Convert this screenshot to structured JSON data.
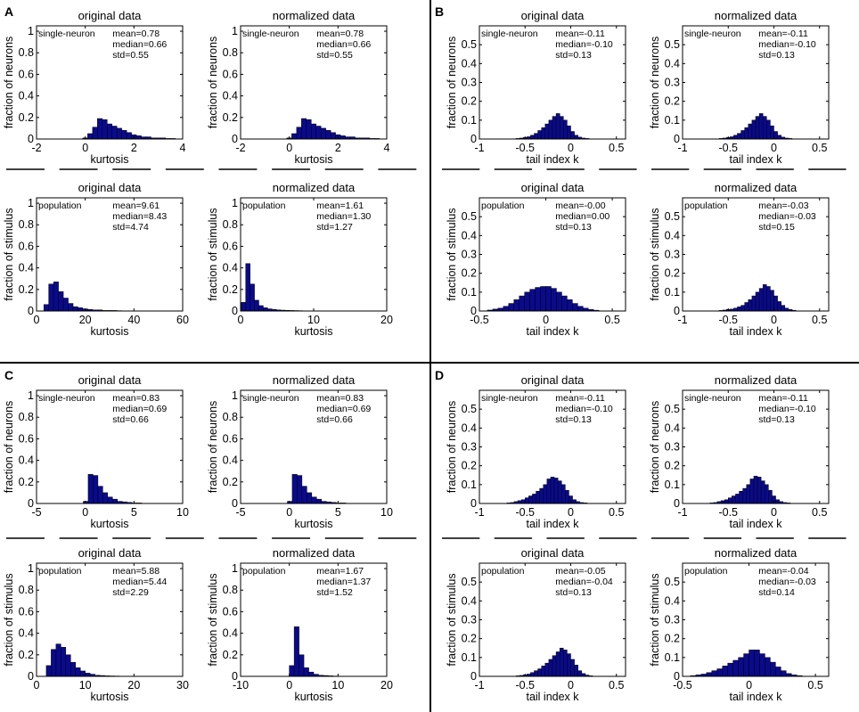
{
  "panel_labels": [
    "A",
    "B",
    "C",
    "D"
  ],
  "chart_data": [
    {
      "panel": "A",
      "type": "bar",
      "title": "original data",
      "xlabel": "kurtosis",
      "ylabel": "fraction of neurons",
      "tag": "single-neuron",
      "stats": [
        "mean=0.78",
        "median=0.66",
        "std=0.55"
      ],
      "xlim": [
        -2,
        4
      ],
      "ylim": [
        0,
        1.05
      ],
      "xticks": [
        -2,
        0,
        2,
        4
      ],
      "xtick_labels": [
        "-2",
        "0",
        "2",
        "4"
      ],
      "yticks": [
        0,
        0.2,
        0.4,
        0.6,
        0.8,
        1
      ],
      "ytick_labels": [
        "0",
        "0.2",
        "0.4",
        "0.6",
        "0.8",
        "1"
      ],
      "bin_start": -0.1,
      "bin_width": 0.2,
      "values": [
        0.01,
        0.05,
        0.11,
        0.19,
        0.18,
        0.14,
        0.12,
        0.1,
        0.08,
        0.06,
        0.04,
        0.03,
        0.02,
        0.02,
        0.01,
        0.01,
        0.01,
        0.005,
        0.005
      ]
    },
    {
      "panel": "A",
      "type": "bar",
      "title": "normalized data",
      "xlabel": "kurtosis",
      "ylabel": "fraction of neurons",
      "tag": "single-neuron",
      "stats": [
        "mean=0.78",
        "median=0.66",
        "std=0.55"
      ],
      "xlim": [
        -2,
        4
      ],
      "ylim": [
        0,
        1.05
      ],
      "xticks": [
        -2,
        0,
        2,
        4
      ],
      "xtick_labels": [
        "-2",
        "0",
        "2",
        "4"
      ],
      "yticks": [
        0,
        0.2,
        0.4,
        0.6,
        0.8,
        1
      ],
      "ytick_labels": [
        "0",
        "0.2",
        "0.4",
        "0.6",
        "0.8",
        "1"
      ],
      "bin_start": -0.1,
      "bin_width": 0.2,
      "values": [
        0.01,
        0.05,
        0.11,
        0.19,
        0.18,
        0.14,
        0.12,
        0.1,
        0.08,
        0.06,
        0.04,
        0.03,
        0.02,
        0.02,
        0.01,
        0.01,
        0.01,
        0.005,
        0.005
      ]
    },
    {
      "panel": "A",
      "type": "bar",
      "title": "original data",
      "xlabel": "kurtosis",
      "ylabel": "fraction of stimulus",
      "tag": "population",
      "stats": [
        "mean=9.61",
        "median=8.43",
        "std=4.74"
      ],
      "xlim": [
        0,
        60
      ],
      "ylim": [
        0,
        1.05
      ],
      "xticks": [
        0,
        20,
        40,
        60
      ],
      "xtick_labels": [
        "0",
        "20",
        "40",
        "60"
      ],
      "yticks": [
        0,
        0.2,
        0.4,
        0.6,
        0.8,
        1
      ],
      "ytick_labels": [
        "0",
        "0.2",
        "0.4",
        "0.6",
        "0.8",
        "1"
      ],
      "bin_start": 3,
      "bin_width": 2,
      "values": [
        0.06,
        0.25,
        0.27,
        0.18,
        0.12,
        0.07,
        0.04,
        0.03,
        0.02,
        0.015,
        0.01,
        0.01,
        0.005,
        0.005,
        0.005,
        0.003
      ]
    },
    {
      "panel": "A",
      "type": "bar",
      "title": "normalized data",
      "xlabel": "kurtosis",
      "ylabel": "fraction of stimulus",
      "tag": "population",
      "stats": [
        "mean=1.61",
        "median=1.30",
        "std=1.27"
      ],
      "xlim": [
        0,
        20
      ],
      "ylim": [
        0,
        1.05
      ],
      "xticks": [
        0,
        10,
        20
      ],
      "xtick_labels": [
        "0",
        "10",
        "20"
      ],
      "yticks": [
        0,
        0.2,
        0.4,
        0.6,
        0.8,
        1
      ],
      "ytick_labels": [
        "0",
        "0.2",
        "0.4",
        "0.6",
        "0.8",
        "1"
      ],
      "bin_start": 0.1,
      "bin_width": 0.6,
      "values": [
        0.08,
        0.44,
        0.25,
        0.1,
        0.05,
        0.03,
        0.02,
        0.015,
        0.01,
        0.008,
        0.006,
        0.005,
        0.004,
        0.003,
        0.002,
        0.002
      ]
    },
    {
      "panel": "B",
      "type": "bar",
      "title": "original data",
      "xlabel": "tail index k",
      "ylabel": "fraction of neurons",
      "tag": "single-neuron",
      "stats": [
        "mean=-0.11",
        "median=-0.10",
        "std=0.13"
      ],
      "xlim": [
        -1,
        0.6
      ],
      "ylim": [
        0,
        0.6
      ],
      "xticks": [
        -1,
        -0.5,
        0,
        0.5
      ],
      "xtick_labels": [
        "-1",
        "-0.5",
        "0",
        "0.5"
      ],
      "yticks": [
        0,
        0.1,
        0.2,
        0.3,
        0.4,
        0.5
      ],
      "ytick_labels": [
        "0",
        "0.1",
        "0.2",
        "0.3",
        "0.4",
        "0.5"
      ],
      "bin_start": -0.6,
      "bin_width": 0.04,
      "values": [
        0.003,
        0.005,
        0.008,
        0.012,
        0.02,
        0.03,
        0.045,
        0.06,
        0.08,
        0.1,
        0.12,
        0.135,
        0.12,
        0.1,
        0.07,
        0.04,
        0.02,
        0.01,
        0.005,
        0.003
      ]
    },
    {
      "panel": "B",
      "type": "bar",
      "title": "normalized data",
      "xlabel": "tail index k",
      "ylabel": "fraction of neurons",
      "tag": "single-neuron",
      "stats": [
        "mean=-0.11",
        "median=-0.10",
        "std=0.13"
      ],
      "xlim": [
        -1,
        0.6
      ],
      "ylim": [
        0,
        0.6
      ],
      "xticks": [
        -1,
        -0.5,
        0,
        0.5
      ],
      "xtick_labels": [
        "-1",
        "-0.5",
        "0",
        "0.5"
      ],
      "yticks": [
        0,
        0.1,
        0.2,
        0.3,
        0.4,
        0.5
      ],
      "ytick_labels": [
        "0",
        "0.1",
        "0.2",
        "0.3",
        "0.4",
        "0.5"
      ],
      "bin_start": -0.6,
      "bin_width": 0.04,
      "values": [
        0.003,
        0.005,
        0.008,
        0.012,
        0.02,
        0.03,
        0.045,
        0.06,
        0.08,
        0.1,
        0.12,
        0.135,
        0.12,
        0.1,
        0.07,
        0.04,
        0.02,
        0.01,
        0.005,
        0.003
      ]
    },
    {
      "panel": "B",
      "type": "bar",
      "title": "original data",
      "xlabel": "tail index k",
      "ylabel": "fraction of stimulus",
      "tag": "population",
      "stats": [
        "mean=-0.00",
        "median=0.00",
        "std=0.13"
      ],
      "xlim": [
        -0.5,
        0.6
      ],
      "ylim": [
        0,
        0.6
      ],
      "xticks": [
        -0.5,
        0,
        0.5
      ],
      "xtick_labels": [
        "-0.5",
        "0",
        "0.5"
      ],
      "yticks": [
        0,
        0.1,
        0.2,
        0.3,
        0.4,
        0.5
      ],
      "ytick_labels": [
        "0",
        "0.1",
        "0.2",
        "0.3",
        "0.4",
        "0.5"
      ],
      "bin_start": -0.44,
      "bin_width": 0.04,
      "values": [
        0.005,
        0.01,
        0.015,
        0.025,
        0.04,
        0.06,
        0.08,
        0.1,
        0.115,
        0.125,
        0.13,
        0.13,
        0.12,
        0.1,
        0.08,
        0.06,
        0.04,
        0.025,
        0.015,
        0.008,
        0.004
      ]
    },
    {
      "panel": "B",
      "type": "bar",
      "title": "normalized data",
      "xlabel": "tail index k",
      "ylabel": "fraction of stimulus",
      "tag": "population",
      "stats": [
        "mean=-0.03",
        "median=-0.03",
        "std=0.15"
      ],
      "xlim": [
        -1,
        0.6
      ],
      "ylim": [
        0,
        0.6
      ],
      "xticks": [
        -1,
        -0.5,
        0,
        0.5
      ],
      "xtick_labels": [
        "-1",
        "-0.5",
        "0",
        "0.5"
      ],
      "yticks": [
        0,
        0.1,
        0.2,
        0.3,
        0.4,
        0.5
      ],
      "ytick_labels": [
        "0",
        "0.1",
        "0.2",
        "0.3",
        "0.4",
        "0.5"
      ],
      "bin_start": -0.6,
      "bin_width": 0.04,
      "values": [
        0.003,
        0.005,
        0.008,
        0.01,
        0.015,
        0.022,
        0.03,
        0.045,
        0.06,
        0.08,
        0.1,
        0.12,
        0.14,
        0.13,
        0.11,
        0.08,
        0.05,
        0.03,
        0.015,
        0.008,
        0.004
      ]
    },
    {
      "panel": "C",
      "type": "bar",
      "title": "original data",
      "xlabel": "kurtosis",
      "ylabel": "fraction of neurons",
      "tag": "single-neuron",
      "stats": [
        "mean=0.83",
        "median=0.69",
        "std=0.66"
      ],
      "xlim": [
        -5,
        10
      ],
      "ylim": [
        0,
        1.05
      ],
      "xticks": [
        -5,
        0,
        5,
        10
      ],
      "xtick_labels": [
        "-5",
        "0",
        "5",
        "10"
      ],
      "yticks": [
        0,
        0.2,
        0.4,
        0.6,
        0.8,
        1
      ],
      "ytick_labels": [
        "0",
        "0.2",
        "0.4",
        "0.6",
        "0.8",
        "1"
      ],
      "bin_start": -0.2,
      "bin_width": 0.5,
      "values": [
        0.02,
        0.27,
        0.26,
        0.16,
        0.1,
        0.06,
        0.04,
        0.02,
        0.015,
        0.01,
        0.005,
        0.005
      ]
    },
    {
      "panel": "C",
      "type": "bar",
      "title": "normalized data",
      "xlabel": "kurtosis",
      "ylabel": "fraction of neurons",
      "tag": "single-neuron",
      "stats": [
        "mean=0.83",
        "median=0.69",
        "std=0.66"
      ],
      "xlim": [
        -5,
        10
      ],
      "ylim": [
        0,
        1.05
      ],
      "xticks": [
        -5,
        0,
        5,
        10
      ],
      "xtick_labels": [
        "-5",
        "0",
        "5",
        "10"
      ],
      "yticks": [
        0,
        0.2,
        0.4,
        0.6,
        0.8,
        1
      ],
      "ytick_labels": [
        "0",
        "0.2",
        "0.4",
        "0.6",
        "0.8",
        "1"
      ],
      "bin_start": -0.2,
      "bin_width": 0.5,
      "values": [
        0.02,
        0.27,
        0.26,
        0.16,
        0.1,
        0.06,
        0.04,
        0.02,
        0.015,
        0.01,
        0.005,
        0.005
      ]
    },
    {
      "panel": "C",
      "type": "bar",
      "title": "original data",
      "xlabel": "kurtosis",
      "ylabel": "fraction of stimulus",
      "tag": "population",
      "stats": [
        "mean=5.88",
        "median=5.44",
        "std=2.29"
      ],
      "xlim": [
        0,
        30
      ],
      "ylim": [
        0,
        1.05
      ],
      "xticks": [
        0,
        10,
        20,
        30
      ],
      "xtick_labels": [
        "0",
        "10",
        "20",
        "30"
      ],
      "yticks": [
        0,
        0.2,
        0.4,
        0.6,
        0.8,
        1
      ],
      "ytick_labels": [
        "0",
        "0.2",
        "0.4",
        "0.6",
        "0.8",
        "1"
      ],
      "bin_start": 2,
      "bin_width": 1,
      "values": [
        0.1,
        0.25,
        0.3,
        0.27,
        0.2,
        0.13,
        0.08,
        0.05,
        0.03,
        0.02,
        0.01,
        0.008,
        0.005,
        0.004,
        0.003
      ]
    },
    {
      "panel": "C",
      "type": "bar",
      "title": "normalized data",
      "xlabel": "kurtosis",
      "ylabel": "fraction of stimulus",
      "tag": "population",
      "stats": [
        "mean=1.67",
        "median=1.37",
        "std=1.52"
      ],
      "xlim": [
        -10,
        20
      ],
      "ylim": [
        0,
        1.05
      ],
      "xticks": [
        -10,
        0,
        10,
        20
      ],
      "xtick_labels": [
        "-10",
        "0",
        "10",
        "20"
      ],
      "yticks": [
        0,
        0.2,
        0.4,
        0.6,
        0.8,
        1
      ],
      "ytick_labels": [
        "0",
        "0.2",
        "0.4",
        "0.6",
        "0.8",
        "1"
      ],
      "bin_start": 0,
      "bin_width": 1,
      "values": [
        0.1,
        0.46,
        0.2,
        0.08,
        0.04,
        0.02,
        0.01,
        0.008,
        0.005,
        0.003
      ]
    },
    {
      "panel": "D",
      "type": "bar",
      "title": "original data",
      "xlabel": "tail index k",
      "ylabel": "fraction of neurons",
      "tag": "single-neuron",
      "stats": [
        "mean=-0.11",
        "median=-0.10",
        "std=0.13"
      ],
      "xlim": [
        -1,
        0.6
      ],
      "ylim": [
        0,
        0.6
      ],
      "xticks": [
        -1,
        -0.5,
        0,
        0.5
      ],
      "xtick_labels": [
        "-1",
        "-0.5",
        "0",
        "0.5"
      ],
      "yticks": [
        0,
        0.1,
        0.2,
        0.3,
        0.4,
        0.5
      ],
      "ytick_labels": [
        "0",
        "0.1",
        "0.2",
        "0.3",
        "0.4",
        "0.5"
      ],
      "bin_start": -0.7,
      "bin_width": 0.04,
      "values": [
        0.003,
        0.005,
        0.01,
        0.015,
        0.02,
        0.03,
        0.04,
        0.05,
        0.065,
        0.08,
        0.1,
        0.13,
        0.14,
        0.135,
        0.12,
        0.1,
        0.07,
        0.04,
        0.02,
        0.01,
        0.005,
        0.003
      ]
    },
    {
      "panel": "D",
      "type": "bar",
      "title": "normalized data",
      "xlabel": "tail index k",
      "ylabel": "fraction of neurons",
      "tag": "single-neuron",
      "stats": [
        "mean=-0.11",
        "median=-0.10",
        "std=0.13"
      ],
      "xlim": [
        -1,
        0.6
      ],
      "ylim": [
        0,
        0.6
      ],
      "xticks": [
        -1,
        -0.5,
        0,
        0.5
      ],
      "xtick_labels": [
        "-1",
        "-0.5",
        "0",
        "0.5"
      ],
      "yticks": [
        0,
        0.1,
        0.2,
        0.3,
        0.4,
        0.5
      ],
      "ytick_labels": [
        "0",
        "0.1",
        "0.2",
        "0.3",
        "0.4",
        "0.5"
      ],
      "bin_start": -0.7,
      "bin_width": 0.04,
      "values": [
        0.003,
        0.005,
        0.01,
        0.015,
        0.02,
        0.03,
        0.04,
        0.05,
        0.065,
        0.08,
        0.1,
        0.13,
        0.145,
        0.14,
        0.12,
        0.1,
        0.07,
        0.04,
        0.02,
        0.01,
        0.005,
        0.003
      ]
    },
    {
      "panel": "D",
      "type": "bar",
      "title": "original data",
      "xlabel": "tail index k",
      "ylabel": "fraction of stimulus",
      "tag": "population",
      "stats": [
        "mean=-0.05",
        "median=-0.04",
        "std=0.13"
      ],
      "xlim": [
        -1,
        0.6
      ],
      "ylim": [
        0,
        0.6
      ],
      "xticks": [
        -1,
        -0.5,
        0,
        0.5
      ],
      "xtick_labels": [
        "-1",
        "-0.5",
        "0",
        "0.5"
      ],
      "yticks": [
        0,
        0.1,
        0.2,
        0.3,
        0.4,
        0.5
      ],
      "ytick_labels": [
        "0",
        "0.1",
        "0.2",
        "0.3",
        "0.4",
        "0.5"
      ],
      "bin_start": -0.6,
      "bin_width": 0.04,
      "values": [
        0.003,
        0.005,
        0.008,
        0.012,
        0.02,
        0.03,
        0.04,
        0.055,
        0.07,
        0.09,
        0.11,
        0.13,
        0.15,
        0.14,
        0.12,
        0.09,
        0.06,
        0.03,
        0.015,
        0.007,
        0.003
      ]
    },
    {
      "panel": "D",
      "type": "bar",
      "title": "normalized data",
      "xlabel": "tail index k",
      "ylabel": "fraction of stimulus",
      "tag": "population",
      "stats": [
        "mean=-0.04",
        "median=-0.03",
        "std=0.14"
      ],
      "xlim": [
        -0.5,
        0.6
      ],
      "ylim": [
        0,
        0.6
      ],
      "xticks": [
        -0.5,
        0,
        0.5
      ],
      "xtick_labels": [
        "-0.5",
        "0",
        "0.5"
      ],
      "yticks": [
        0,
        0.1,
        0.2,
        0.3,
        0.4,
        0.5
      ],
      "ytick_labels": [
        "0",
        "0.1",
        "0.2",
        "0.3",
        "0.4",
        "0.5"
      ],
      "bin_start": -0.44,
      "bin_width": 0.04,
      "values": [
        0.004,
        0.008,
        0.012,
        0.02,
        0.03,
        0.04,
        0.055,
        0.07,
        0.085,
        0.1,
        0.12,
        0.14,
        0.14,
        0.12,
        0.1,
        0.075,
        0.05,
        0.03,
        0.015,
        0.008,
        0.004
      ]
    }
  ]
}
